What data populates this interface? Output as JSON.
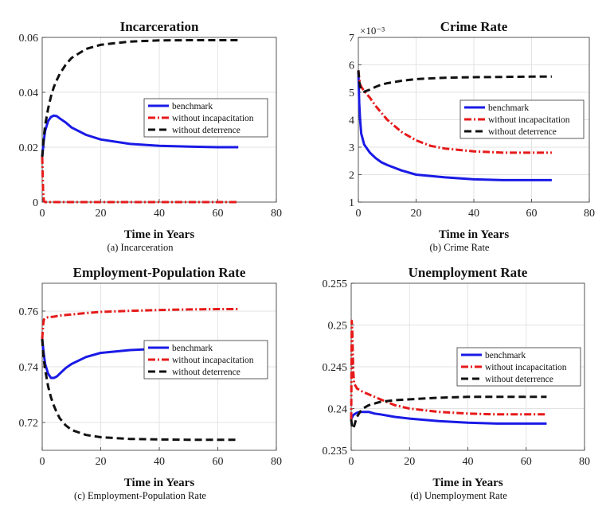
{
  "legend_entries": [
    "benchmark",
    "without incapacitation",
    "without deterrence"
  ],
  "series_styles": [
    {
      "color": "#1a1ae6",
      "dash": "",
      "width": 3
    },
    {
      "color": "#e61a1a",
      "dash": "9 3 2 3",
      "width": 3
    },
    {
      "color": "#111111",
      "dash": "9 5",
      "width": 3
    }
  ],
  "chart_data": [
    {
      "type": "line",
      "title": "Incarceration",
      "caption": "(a) Incarceration",
      "xlabel": "Time in Years",
      "ylabel": "",
      "xlim": [
        0,
        80
      ],
      "ylim": [
        0,
        0.06
      ],
      "xticks": [
        0,
        20,
        40,
        60,
        80
      ],
      "xtick_labels": [
        "0",
        "20",
        "40",
        "60",
        "80"
      ],
      "yticks": [
        0,
        0.02,
        0.04,
        0.06
      ],
      "ytick_labels": [
        "0",
        "0.02",
        "0.04",
        "0.06"
      ],
      "multiplier": "",
      "grid": true,
      "legend": "right",
      "series": [
        {
          "name": "benchmark",
          "x": [
            0,
            0.5,
            1,
            2,
            3,
            4,
            5,
            6,
            8,
            10,
            15,
            20,
            30,
            40,
            50,
            60,
            67
          ],
          "y": [
            0.0165,
            0.022,
            0.026,
            0.0295,
            0.031,
            0.0315,
            0.0313,
            0.0305,
            0.029,
            0.0272,
            0.0245,
            0.0228,
            0.0212,
            0.0205,
            0.0202,
            0.02,
            0.02
          ]
        },
        {
          "name": "without incapacitation",
          "x": [
            0,
            0.3,
            0.6,
            1,
            67
          ],
          "y": [
            0.0165,
            0.004,
            0.0003,
            0,
            0
          ]
        },
        {
          "name": "without deterrence",
          "x": [
            0,
            0.5,
            1,
            2,
            3,
            4,
            5,
            6,
            8,
            10,
            15,
            20,
            30,
            40,
            50,
            60,
            67
          ],
          "y": [
            0.0165,
            0.023,
            0.028,
            0.034,
            0.0385,
            0.042,
            0.0445,
            0.0467,
            0.05,
            0.0525,
            0.0558,
            0.0573,
            0.0585,
            0.0589,
            0.059,
            0.059,
            0.059
          ]
        }
      ]
    },
    {
      "type": "line",
      "title": "Crime Rate",
      "caption": "(b) Crime Rate",
      "xlabel": "Time in Years",
      "ylabel": "",
      "xlim": [
        0,
        80
      ],
      "ylim": [
        1,
        7
      ],
      "xticks": [
        0,
        20,
        40,
        60,
        80
      ],
      "xtick_labels": [
        "0",
        "20",
        "40",
        "60",
        "80"
      ],
      "yticks": [
        1,
        2,
        3,
        4,
        5,
        6,
        7
      ],
      "ytick_labels": [
        "1",
        "2",
        "3",
        "4",
        "5",
        "6",
        "7"
      ],
      "multiplier": "×10⁻³",
      "grid": true,
      "legend": "right",
      "series": [
        {
          "name": "benchmark",
          "x": [
            0,
            0.3,
            0.6,
            1,
            2,
            3,
            4,
            6,
            8,
            10,
            15,
            20,
            30,
            40,
            50,
            60,
            67
          ],
          "y": [
            5.8,
            4.6,
            4.0,
            3.5,
            3.1,
            2.95,
            2.8,
            2.6,
            2.45,
            2.35,
            2.15,
            2.0,
            1.9,
            1.83,
            1.8,
            1.8,
            1.8
          ]
        },
        {
          "name": "without incapacitation",
          "x": [
            0,
            0.3,
            0.6,
            1,
            2,
            4,
            6,
            8,
            10,
            15,
            20,
            25,
            30,
            40,
            50,
            60,
            67
          ],
          "y": [
            5.8,
            5.5,
            5.3,
            5.2,
            5.05,
            4.8,
            4.5,
            4.25,
            4.0,
            3.55,
            3.25,
            3.05,
            2.95,
            2.85,
            2.8,
            2.8,
            2.8
          ]
        },
        {
          "name": "without deterrence",
          "x": [
            0,
            0.3,
            0.6,
            1,
            2,
            4,
            6,
            8,
            10,
            15,
            20,
            30,
            40,
            50,
            60,
            67
          ],
          "y": [
            5.8,
            5.4,
            5.2,
            5.1,
            5.02,
            5.1,
            5.2,
            5.28,
            5.33,
            5.42,
            5.48,
            5.53,
            5.55,
            5.56,
            5.57,
            5.57
          ]
        }
      ]
    },
    {
      "type": "line",
      "title": "Employment-Population Rate",
      "caption": "(c) Employment-Population Rate",
      "xlabel": "Time in Years",
      "ylabel": "",
      "xlim": [
        0,
        80
      ],
      "ylim": [
        0.71,
        0.77
      ],
      "xticks": [
        0,
        20,
        40,
        60,
        80
      ],
      "xtick_labels": [
        "0",
        "20",
        "40",
        "60",
        "80"
      ],
      "yticks": [
        0.72,
        0.74,
        0.76
      ],
      "ytick_labels": [
        "0.72",
        "0.74",
        "0.76"
      ],
      "multiplier": "",
      "grid": true,
      "legend": "right",
      "series": [
        {
          "name": "benchmark",
          "x": [
            0,
            0.5,
            1,
            2,
            3,
            4,
            5,
            6,
            8,
            10,
            15,
            20,
            30,
            40,
            50,
            60,
            67
          ],
          "y": [
            0.75,
            0.745,
            0.741,
            0.7375,
            0.736,
            0.736,
            0.7365,
            0.7375,
            0.7395,
            0.741,
            0.7435,
            0.745,
            0.746,
            0.7465,
            0.747,
            0.747,
            0.747
          ]
        },
        {
          "name": "without incapacitation",
          "x": [
            0,
            0.3,
            0.6,
            1,
            2,
            4,
            6,
            10,
            15,
            20,
            30,
            40,
            50,
            60,
            67
          ],
          "y": [
            0.75,
            0.755,
            0.757,
            0.7575,
            0.7578,
            0.758,
            0.7584,
            0.7588,
            0.7593,
            0.7597,
            0.7601,
            0.7604,
            0.7606,
            0.7607,
            0.7607
          ]
        },
        {
          "name": "without deterrence",
          "x": [
            0,
            0.5,
            1,
            2,
            3,
            4,
            5,
            6,
            8,
            10,
            15,
            20,
            30,
            40,
            50,
            60,
            67
          ],
          "y": [
            0.75,
            0.743,
            0.739,
            0.733,
            0.729,
            0.726,
            0.7235,
            0.7215,
            0.719,
            0.7173,
            0.7155,
            0.7147,
            0.7141,
            0.7139,
            0.7138,
            0.7138,
            0.7138
          ]
        }
      ]
    },
    {
      "type": "line",
      "title": "Unemployment Rate",
      "caption": "(d) Unemployment Rate",
      "xlabel": "Time in Years",
      "ylabel": "",
      "xlim": [
        0,
        80
      ],
      "ylim": [
        0.235,
        0.255
      ],
      "xticks": [
        0,
        20,
        40,
        60,
        80
      ],
      "xtick_labels": [
        "0",
        "20",
        "40",
        "60",
        "80"
      ],
      "yticks": [
        0.235,
        0.24,
        0.245,
        0.25,
        0.255
      ],
      "ytick_labels": [
        "0.235",
        "0.24",
        "0.245",
        "0.25",
        "0.255"
      ],
      "multiplier": "",
      "grid": true,
      "legend": "right",
      "series": [
        {
          "name": "benchmark",
          "x": [
            0,
            0.5,
            1,
            2,
            3,
            4,
            5,
            6,
            8,
            10,
            15,
            20,
            30,
            40,
            50,
            60,
            67
          ],
          "y": [
            0.2387,
            0.2391,
            0.2393,
            0.2395,
            0.2396,
            0.2396,
            0.2396,
            0.2396,
            0.2394,
            0.2393,
            0.239,
            0.2388,
            0.2385,
            0.2383,
            0.2382,
            0.2382,
            0.2382
          ]
        },
        {
          "name": "without incapacitation",
          "x": [
            0,
            0.2,
            0.4,
            0.7,
            1,
            2,
            4,
            6,
            10,
            15,
            20,
            30,
            40,
            50,
            60,
            67
          ],
          "y": [
            0.2387,
            0.2505,
            0.249,
            0.2445,
            0.243,
            0.2424,
            0.242,
            0.2417,
            0.2411,
            0.2404,
            0.24,
            0.2396,
            0.2394,
            0.2393,
            0.2393,
            0.2393
          ]
        },
        {
          "name": "without deterrence",
          "x": [
            0,
            0.3,
            0.6,
            1,
            1.5,
            2,
            3,
            4,
            6,
            8,
            10,
            15,
            20,
            30,
            40,
            50,
            60,
            67
          ],
          "y": [
            0.2387,
            0.2378,
            0.2376,
            0.2379,
            0.2385,
            0.239,
            0.2396,
            0.24,
            0.2404,
            0.2406,
            0.2408,
            0.241,
            0.2411,
            0.2413,
            0.2414,
            0.2414,
            0.2414,
            0.2414
          ]
        }
      ]
    }
  ]
}
